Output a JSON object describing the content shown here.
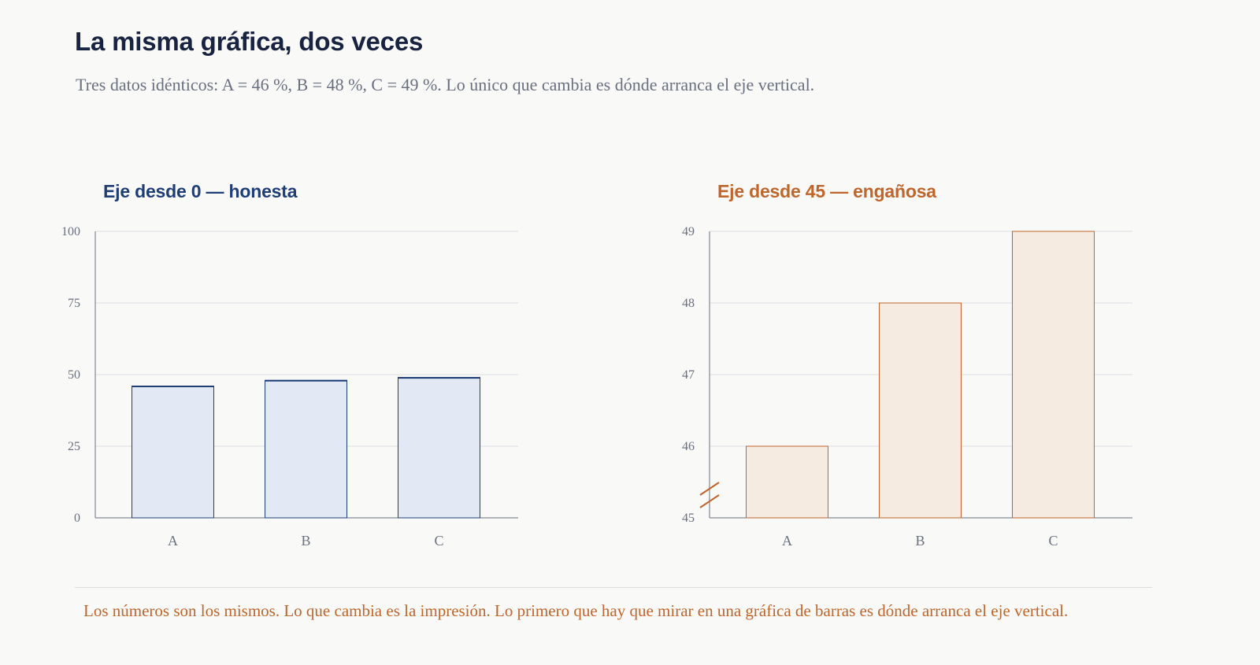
{
  "header": {
    "title": "La misma gráfica, dos veces",
    "subtitle": "Tres datos idénticos: A = 46 %, B = 48 %, C = 49 %. Lo único que cambia es dónde arranca el eje vertical."
  },
  "footer": {
    "note": "Los números son los mismos. Lo que cambia es la impresión. Lo primero que hay que mirar en una gráfica de barras es dónde arranca el eje vertical."
  },
  "colors": {
    "honest_stroke": "#1f3d77",
    "honest_fill": "#e3e9f4",
    "misleading_stroke": "#c0652b",
    "misleading_fill": "#f6ebe0",
    "grid": "#dcdde0",
    "axis": "#6a7080"
  },
  "chart_data": [
    {
      "type": "bar",
      "title": "Eje desde 0 — honesta",
      "categories": [
        "A",
        "B",
        "C"
      ],
      "values": [
        46,
        48,
        49
      ],
      "ylim": [
        0,
        100
      ],
      "yticks": [
        0,
        25,
        50,
        75,
        100
      ],
      "grid": true,
      "axis_break": false
    },
    {
      "type": "bar",
      "title": "Eje desde 45 — engañosa",
      "categories": [
        "A",
        "B",
        "C"
      ],
      "values": [
        46,
        48,
        49
      ],
      "ylim": [
        45,
        49
      ],
      "yticks": [
        45,
        46,
        47,
        48,
        49
      ],
      "grid": true,
      "axis_break": true
    }
  ]
}
